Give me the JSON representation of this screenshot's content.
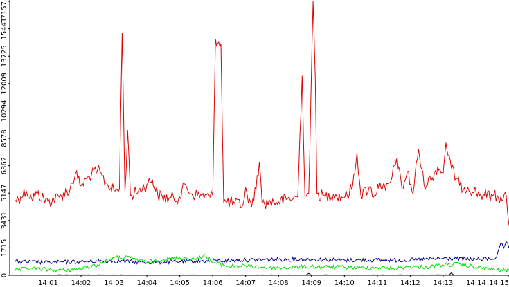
{
  "chart_data": {
    "type": "line",
    "title": "",
    "xlabel": "",
    "ylabel": "",
    "ylim": [
      0,
      17157
    ],
    "xlim": [
      "13:59:50",
      "14:15:00"
    ],
    "grid": false,
    "legend": "none",
    "y_ticks": [
      "0",
      "1715",
      "3431",
      "5147",
      "6862",
      "8578",
      "10294",
      "12009",
      "13725",
      "15441",
      "17157"
    ],
    "x_ticks": [
      "14:01",
      "14:02",
      "14:03",
      "14:04",
      "14:05",
      "14:06",
      "14:07",
      "14:08",
      "14:09",
      "14:10",
      "14:11",
      "14:12",
      "14:13",
      "14:14",
      "14:15"
    ],
    "series": [
      {
        "color": "#dd0000",
        "points": [
          [
            "14:00:00",
            4700
          ],
          [
            "14:00:10",
            4900
          ],
          [
            "14:00:20",
            5300
          ],
          [
            "14:00:30",
            4800
          ],
          [
            "14:00:40",
            5100
          ],
          [
            "14:01:00",
            4600
          ],
          [
            "14:01:20",
            4900
          ],
          [
            "14:01:40",
            5400
          ],
          [
            "14:01:50",
            6400
          ],
          [
            "14:02:00",
            5600
          ],
          [
            "14:02:15",
            6200
          ],
          [
            "14:02:30",
            6600
          ],
          [
            "14:02:45",
            5800
          ],
          [
            "14:03:00",
            5300
          ],
          [
            "14:03:10",
            5400
          ],
          [
            "14:03:15",
            15200
          ],
          [
            "14:03:20",
            5200
          ],
          [
            "14:03:25",
            9100
          ],
          [
            "14:03:30",
            5000
          ],
          [
            "14:03:45",
            5300
          ],
          [
            "14:04:00",
            5700
          ],
          [
            "14:04:10",
            6000
          ],
          [
            "14:04:20",
            5000
          ],
          [
            "14:04:40",
            4800
          ],
          [
            "14:05:00",
            4900
          ],
          [
            "14:05:10",
            5700
          ],
          [
            "14:05:20",
            5100
          ],
          [
            "14:05:40",
            5000
          ],
          [
            "14:05:55",
            4900
          ],
          [
            "14:06:00",
            5000
          ],
          [
            "14:06:05",
            14800
          ],
          [
            "14:06:15",
            14500
          ],
          [
            "14:06:20",
            4600
          ],
          [
            "14:06:40",
            4500
          ],
          [
            "14:06:55",
            4400
          ],
          [
            "14:07:00",
            5500
          ],
          [
            "14:07:05",
            4500
          ],
          [
            "14:07:15",
            4700
          ],
          [
            "14:07:25",
            7100
          ],
          [
            "14:07:30",
            4500
          ],
          [
            "14:07:45",
            4600
          ],
          [
            "14:08:00",
            4600
          ],
          [
            "14:08:20",
            4800
          ],
          [
            "14:08:35",
            4900
          ],
          [
            "14:08:43",
            12500
          ],
          [
            "14:08:48",
            5000
          ],
          [
            "14:08:55",
            5100
          ],
          [
            "14:09:03",
            17157
          ],
          [
            "14:09:07",
            12300
          ],
          [
            "14:09:10",
            5100
          ],
          [
            "14:09:25",
            4900
          ],
          [
            "14:09:40",
            5100
          ],
          [
            "14:09:55",
            4900
          ],
          [
            "14:10:05",
            5000
          ],
          [
            "14:10:15",
            5600
          ],
          [
            "14:10:23",
            7700
          ],
          [
            "14:10:30",
            5000
          ],
          [
            "14:10:45",
            5500
          ],
          [
            "14:10:55",
            5000
          ],
          [
            "14:11:05",
            5800
          ],
          [
            "14:11:15",
            5300
          ],
          [
            "14:11:25",
            5900
          ],
          [
            "14:11:35",
            7300
          ],
          [
            "14:11:45",
            5400
          ],
          [
            "14:11:55",
            6500
          ],
          [
            "14:12:05",
            5100
          ],
          [
            "14:12:15",
            7900
          ],
          [
            "14:12:25",
            5700
          ],
          [
            "14:12:40",
            6100
          ],
          [
            "14:12:50",
            6800
          ],
          [
            "14:13:00",
            6400
          ],
          [
            "14:13:05",
            8300
          ],
          [
            "14:13:15",
            6700
          ],
          [
            "14:13:30",
            5600
          ],
          [
            "14:13:45",
            5500
          ],
          [
            "14:14:00",
            5200
          ],
          [
            "14:14:15",
            5000
          ],
          [
            "14:14:30",
            5000
          ],
          [
            "14:14:45",
            4900
          ],
          [
            "14:14:55",
            5000
          ],
          [
            "14:15:00",
            3100
          ]
        ]
      },
      {
        "color": "#00008b",
        "points": [
          [
            "14:00:00",
            850
          ],
          [
            "14:01:00",
            800
          ],
          [
            "14:02:00",
            850
          ],
          [
            "14:03:00",
            900
          ],
          [
            "14:04:00",
            800
          ],
          [
            "14:05:00",
            850
          ],
          [
            "14:06:00",
            900
          ],
          [
            "14:07:00",
            950
          ],
          [
            "14:08:00",
            1000
          ],
          [
            "14:09:00",
            1000
          ],
          [
            "14:10:00",
            950
          ],
          [
            "14:11:00",
            950
          ],
          [
            "14:12:00",
            950
          ],
          [
            "14:13:00",
            1050
          ],
          [
            "14:14:00",
            1000
          ],
          [
            "14:14:35",
            1050
          ],
          [
            "14:14:40",
            1500
          ],
          [
            "14:14:45",
            2000
          ],
          [
            "14:14:50",
            1700
          ],
          [
            "14:14:55",
            2100
          ],
          [
            "14:15:00",
            1700
          ]
        ]
      },
      {
        "color": "#00dd00",
        "points": [
          [
            "14:00:00",
            300
          ],
          [
            "14:00:30",
            450
          ],
          [
            "14:01:00",
            350
          ],
          [
            "14:01:30",
            300
          ],
          [
            "14:02:00",
            400
          ],
          [
            "14:02:30",
            650
          ],
          [
            "14:03:00",
            1100
          ],
          [
            "14:03:30",
            1100
          ],
          [
            "14:04:00",
            800
          ],
          [
            "14:04:30",
            1000
          ],
          [
            "14:05:00",
            1100
          ],
          [
            "14:05:30",
            1000
          ],
          [
            "14:05:45",
            1300
          ],
          [
            "14:06:00",
            800
          ],
          [
            "14:06:30",
            550
          ],
          [
            "14:07:00",
            600
          ],
          [
            "14:07:30",
            500
          ],
          [
            "14:08:00",
            450
          ],
          [
            "14:08:30",
            500
          ],
          [
            "14:09:00",
            550
          ],
          [
            "14:09:30",
            500
          ],
          [
            "14:10:00",
            500
          ],
          [
            "14:10:30",
            450
          ],
          [
            "14:11:00",
            500
          ],
          [
            "14:11:30",
            400
          ],
          [
            "14:12:00",
            550
          ],
          [
            "14:12:30",
            500
          ],
          [
            "14:13:00",
            650
          ],
          [
            "14:13:30",
            700
          ],
          [
            "14:14:00",
            500
          ],
          [
            "14:14:30",
            350
          ],
          [
            "14:15:00",
            300
          ]
        ]
      },
      {
        "color": "#000000",
        "points": [
          [
            "14:00:00",
            10
          ],
          [
            "14:08:50",
            10
          ],
          [
            "14:08:55",
            120
          ],
          [
            "14:09:00",
            10
          ],
          [
            "14:13:10",
            10
          ],
          [
            "14:13:15",
            150
          ],
          [
            "14:13:20",
            10
          ],
          [
            "14:15:00",
            10
          ]
        ]
      }
    ]
  }
}
